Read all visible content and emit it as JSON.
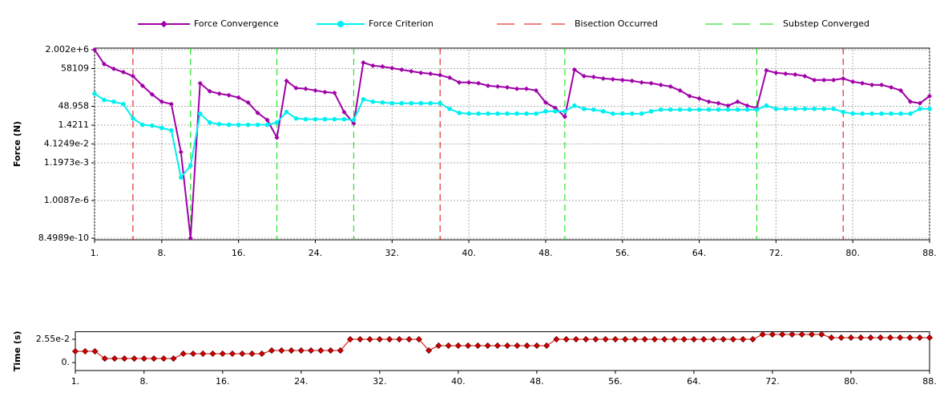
{
  "chart_data": [
    {
      "type": "line",
      "y_label": "Force (N)",
      "log_y": true,
      "grid": true,
      "x": [
        1,
        2,
        3,
        4,
        5,
        6,
        7,
        8,
        9,
        10,
        11,
        12,
        13,
        14,
        15,
        16,
        17,
        18,
        19,
        20,
        21,
        22,
        23,
        24,
        25,
        26,
        27,
        28,
        29,
        30,
        31,
        32,
        33,
        34,
        35,
        36,
        37,
        38,
        39,
        40,
        41,
        42,
        43,
        44,
        45,
        46,
        47,
        48,
        49,
        50,
        51,
        52,
        53,
        54,
        55,
        56,
        57,
        58,
        59,
        60,
        61,
        62,
        63,
        64,
        65,
        66,
        67,
        68,
        69,
        70,
        71,
        72,
        73,
        74,
        75,
        76,
        77,
        78,
        79,
        80,
        81,
        82,
        83,
        84,
        85,
        86,
        87,
        88
      ],
      "xlim": [
        1,
        88
      ],
      "xticks": [
        {
          "value": 1,
          "label": "1."
        },
        {
          "value": 8,
          "label": "8."
        },
        {
          "value": 16,
          "label": "16."
        },
        {
          "value": 24,
          "label": "24."
        },
        {
          "value": 32,
          "label": "32."
        },
        {
          "value": 40,
          "label": "40."
        },
        {
          "value": 48,
          "label": "48."
        },
        {
          "value": 56,
          "label": "56."
        },
        {
          "value": 64,
          "label": "64."
        },
        {
          "value": 72,
          "label": "72."
        },
        {
          "value": 80,
          "label": "80."
        },
        {
          "value": 88,
          "label": "88."
        }
      ],
      "ylim": [
        8.4989e-10,
        2002000
      ],
      "yticks": [
        {
          "value": 2002000,
          "label": "2.002e+6"
        },
        58109,
        48.958,
        1.4211,
        {
          "value": 0.041249,
          "label": "4.1249e-2"
        },
        {
          "value": 0.0011973,
          "label": "1.1973e-3"
        },
        {
          "value": 1.0087e-06,
          "label": "1.0087e-6"
        },
        {
          "value": 8.4989e-10,
          "label": "8.4989e-10"
        }
      ],
      "series": [
        {
          "name": "Force Convergence",
          "color": "#a000a8",
          "marker": "diamond",
          "values": [
            2002000,
            135000,
            55000,
            30000,
            14000,
            2300,
            450,
            115,
            74,
            0.0091,
            8.4989e-10,
            3700,
            820,
            520,
            390,
            250,
            100,
            14,
            3.7,
            0.135,
            5800,
            1500,
            1300,
            950,
            700,
            600,
            16.5,
            2.0,
            180000,
            100000,
            85000,
            63000,
            47000,
            35000,
            26000,
            22000,
            17000,
            10500,
            4300,
            4300,
            3700,
            2300,
            2000,
            1700,
            1300,
            1300,
            950,
            100,
            35,
            6.7,
            47000,
            14000,
            12000,
            9000,
            7800,
            6700,
            5800,
            4300,
            3700,
            2700,
            2000,
            950,
            330,
            210,
            115,
            87,
            55,
            115,
            55,
            35,
            41000,
            26000,
            22000,
            19000,
            14000,
            6700,
            6700,
            6700,
            9000,
            4900,
            3700,
            2700,
            2700,
            1700,
            950,
            115,
            87,
            330
          ]
        },
        {
          "name": "Force Criterion",
          "color": "#00f0f0",
          "marker": "circle",
          "values": [
            520,
            160,
            115,
            74,
            5.0,
            1.5,
            1.3,
            0.83,
            0.53,
            7.6e-05,
            0.00071,
            12.3,
            2.35,
            1.7,
            1.5,
            1.5,
            1.5,
            1.5,
            1.5,
            2.35,
            16.5,
            5.0,
            4.3,
            4.3,
            4.3,
            4.3,
            4.3,
            3.7,
            180,
            115,
            100,
            87,
            87,
            87,
            87,
            87,
            87,
            30,
            14,
            12.3,
            12.3,
            12.3,
            12.3,
            12.3,
            12.3,
            12.3,
            12.3,
            19,
            19,
            19,
            55,
            30,
            26,
            19,
            12.3,
            12.3,
            12.3,
            12.3,
            19,
            26,
            26,
            26,
            26,
            26,
            26,
            26,
            26,
            26,
            26,
            26,
            55,
            30,
            30,
            30,
            30,
            30,
            30,
            30,
            16.5,
            12.3,
            12.3,
            12.3,
            12.3,
            12.3,
            12.3,
            12.3,
            30,
            30
          ]
        }
      ],
      "markers": [
        {
          "name": "Bisection Occurred",
          "color": "#e00000",
          "x": [
            5,
            37,
            79
          ]
        },
        {
          "name": "Substep Converged",
          "color": "#00dd00",
          "x": [
            11,
            20,
            28,
            50,
            70
          ]
        }
      ]
    },
    {
      "type": "line",
      "y_label": "Time (s)",
      "log_y": false,
      "grid": false,
      "x": [
        1,
        2,
        3,
        4,
        5,
        6,
        7,
        8,
        9,
        10,
        11,
        12,
        13,
        14,
        15,
        16,
        17,
        18,
        19,
        20,
        21,
        22,
        23,
        24,
        25,
        26,
        27,
        28,
        29,
        30,
        31,
        32,
        33,
        34,
        35,
        36,
        37,
        38,
        39,
        40,
        41,
        42,
        43,
        44,
        45,
        46,
        47,
        48,
        49,
        50,
        51,
        52,
        53,
        54,
        55,
        56,
        57,
        58,
        59,
        60,
        61,
        62,
        63,
        64,
        65,
        66,
        67,
        68,
        69,
        70,
        71,
        72,
        73,
        74,
        75,
        76,
        77,
        78,
        79,
        80,
        81,
        82,
        83,
        84,
        85,
        86,
        87,
        88
      ],
      "xlim": [
        1,
        88
      ],
      "xticks": [
        {
          "value": 1,
          "label": "1."
        },
        {
          "value": 8,
          "label": "8."
        },
        {
          "value": 16,
          "label": "16."
        },
        {
          "value": 24,
          "label": "24."
        },
        {
          "value": 32,
          "label": "32."
        },
        {
          "value": 40,
          "label": "40."
        },
        {
          "value": 48,
          "label": "48."
        },
        {
          "value": 56,
          "label": "56."
        },
        {
          "value": 64,
          "label": "64."
        },
        {
          "value": 72,
          "label": "72."
        },
        {
          "value": 80,
          "label": "80."
        },
        {
          "value": 88,
          "label": "88."
        }
      ],
      "ylim": [
        -0.007,
        0.032
      ],
      "yticks": [
        {
          "value": 0,
          "label": "0."
        },
        {
          "value": 0.0255,
          "label": "2.55e-2"
        }
      ],
      "series": [
        {
          "color": "#d40000",
          "marker": "diamond",
          "values": [
            0.0123,
            0.0123,
            0.0123,
            0.0044,
            0.0044,
            0.0044,
            0.0044,
            0.0044,
            0.0044,
            0.0044,
            0.0044,
            0.0097,
            0.0097,
            0.0097,
            0.0097,
            0.0097,
            0.0097,
            0.0097,
            0.0097,
            0.0097,
            0.0132,
            0.0132,
            0.0132,
            0.0132,
            0.0132,
            0.0132,
            0.0132,
            0.0132,
            0.0255,
            0.0255,
            0.0255,
            0.0255,
            0.0255,
            0.0255,
            0.0255,
            0.0255,
            0.0132,
            0.0185,
            0.0185,
            0.0185,
            0.0185,
            0.0185,
            0.0185,
            0.0185,
            0.0185,
            0.0185,
            0.0185,
            0.0185,
            0.0185,
            0.0255,
            0.0255,
            0.0255,
            0.0255,
            0.0255,
            0.0255,
            0.0255,
            0.0255,
            0.0255,
            0.0255,
            0.0255,
            0.0255,
            0.0255,
            0.0255,
            0.0255,
            0.0255,
            0.0255,
            0.0255,
            0.0255,
            0.0255,
            0.0255,
            0.0308,
            0.0308,
            0.0308,
            0.0308,
            0.0308,
            0.0308,
            0.0308,
            0.0273,
            0.0273,
            0.0273,
            0.0273,
            0.0273,
            0.0273,
            0.0273,
            0.0273,
            0.0273,
            0.0273,
            0.0273
          ]
        }
      ]
    }
  ]
}
